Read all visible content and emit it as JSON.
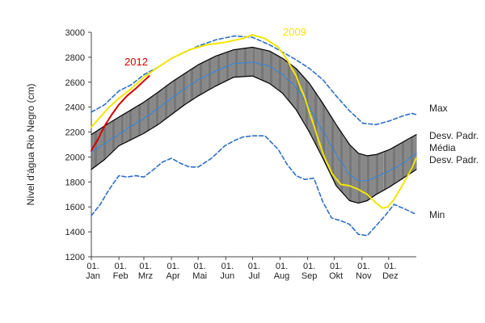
{
  "chart_data": {
    "type": "line",
    "title": "",
    "ylabel": "Nível d'água Rio Negro (cm)",
    "xlabel": "",
    "ylim": [
      1200,
      3000
    ],
    "yticks": [
      1200,
      1400,
      1600,
      1800,
      2000,
      2200,
      2400,
      2600,
      2800,
      3000
    ],
    "xlim": [
      0,
      365
    ],
    "month_ticks": [
      {
        "day": 0,
        "line1": "01.",
        "line2": "Jan"
      },
      {
        "day": 31,
        "line1": "01.",
        "line2": "Feb"
      },
      {
        "day": 59,
        "line1": "01.",
        "line2": "Mrz"
      },
      {
        "day": 90,
        "line1": "01.",
        "line2": "Apr"
      },
      {
        "day": 120,
        "line1": "01.",
        "line2": "Mai"
      },
      {
        "day": 151,
        "line1": "01.",
        "line2": "Jun"
      },
      {
        "day": 181,
        "line1": "01.",
        "line2": "Jul"
      },
      {
        "day": 212,
        "line1": "01.",
        "line2": "Aug"
      },
      {
        "day": 243,
        "line1": "01.",
        "line2": "Sep"
      },
      {
        "day": 273,
        "line1": "01.",
        "line2": "Okt"
      },
      {
        "day": 304,
        "line1": "01.",
        "line2": "Nov"
      },
      {
        "day": 334,
        "line1": "01.",
        "line2": "Dez"
      }
    ],
    "series": [
      {
        "name": "Max",
        "color": "#2f6fc4",
        "style": "dashed",
        "x": [
          0,
          15,
          31,
          45,
          59,
          75,
          90,
          105,
          120,
          140,
          160,
          181,
          200,
          215,
          230,
          245,
          260,
          275,
          290,
          305,
          320,
          335,
          350,
          360,
          365
        ],
        "y": [
          2360,
          2420,
          2530,
          2580,
          2660,
          2720,
          2790,
          2840,
          2890,
          2940,
          2970,
          2960,
          2900,
          2840,
          2780,
          2710,
          2620,
          2490,
          2370,
          2270,
          2260,
          2290,
          2330,
          2350,
          2340
        ]
      },
      {
        "name": "Desv. Padr. (+)",
        "color": "#000000",
        "style": "solid",
        "x": [
          0,
          15,
          31,
          45,
          59,
          75,
          90,
          105,
          120,
          140,
          160,
          181,
          200,
          215,
          230,
          245,
          260,
          275,
          290,
          300,
          310,
          320,
          335,
          350,
          365
        ],
        "y": [
          2180,
          2250,
          2320,
          2380,
          2440,
          2520,
          2600,
          2670,
          2740,
          2810,
          2860,
          2880,
          2850,
          2790,
          2710,
          2590,
          2430,
          2260,
          2100,
          2030,
          2010,
          2020,
          2060,
          2120,
          2180
        ]
      },
      {
        "name": "Média",
        "color": "#3a86d6",
        "style": "solid",
        "x": [
          0,
          15,
          31,
          45,
          59,
          75,
          90,
          105,
          120,
          140,
          160,
          181,
          200,
          215,
          230,
          245,
          260,
          275,
          290,
          300,
          310,
          320,
          335,
          350,
          365
        ],
        "y": [
          2040,
          2110,
          2180,
          2250,
          2310,
          2390,
          2470,
          2550,
          2620,
          2690,
          2750,
          2760,
          2730,
          2660,
          2560,
          2400,
          2210,
          2020,
          1860,
          1810,
          1810,
          1840,
          1890,
          1950,
          2030
        ]
      },
      {
        "name": "Desv. Padr. (-)",
        "color": "#000000",
        "style": "solid",
        "x": [
          0,
          15,
          31,
          45,
          59,
          75,
          90,
          105,
          120,
          140,
          160,
          181,
          200,
          215,
          230,
          245,
          260,
          275,
          290,
          300,
          310,
          320,
          335,
          350,
          365
        ],
        "y": [
          1900,
          1980,
          2090,
          2140,
          2190,
          2260,
          2340,
          2420,
          2490,
          2570,
          2640,
          2650,
          2590,
          2510,
          2380,
          2200,
          1990,
          1770,
          1650,
          1630,
          1650,
          1700,
          1760,
          1830,
          1900
        ]
      },
      {
        "name": "Min",
        "color": "#2f6fc4",
        "style": "dashed",
        "x": [
          0,
          10,
          20,
          31,
          40,
          50,
          59,
          70,
          80,
          90,
          100,
          110,
          120,
          135,
          150,
          160,
          170,
          181,
          195,
          210,
          220,
          230,
          240,
          250,
          260,
          270,
          280,
          290,
          300,
          310,
          320,
          330,
          340,
          350,
          365
        ],
        "y": [
          1530,
          1620,
          1740,
          1850,
          1840,
          1850,
          1840,
          1900,
          1960,
          1990,
          1950,
          1920,
          1920,
          1990,
          2090,
          2130,
          2160,
          2170,
          2170,
          2060,
          1940,
          1850,
          1820,
          1830,
          1640,
          1510,
          1490,
          1460,
          1380,
          1370,
          1450,
          1530,
          1620,
          1590,
          1540
        ]
      },
      {
        "name": "2009",
        "color": "#f2e600",
        "style": "solid",
        "x": [
          0,
          10,
          20,
          31,
          45,
          59,
          75,
          90,
          110,
          130,
          150,
          170,
          181,
          195,
          210,
          220,
          230,
          240,
          250,
          260,
          270,
          280,
          290,
          300,
          310,
          320,
          327,
          333,
          340,
          350,
          360,
          365
        ],
        "y": [
          2240,
          2320,
          2400,
          2470,
          2550,
          2640,
          2720,
          2790,
          2860,
          2900,
          2920,
          2950,
          2980,
          2950,
          2880,
          2780,
          2650,
          2470,
          2250,
          2030,
          1870,
          1780,
          1770,
          1740,
          1700,
          1630,
          1590,
          1600,
          1660,
          1780,
          1910,
          1990
        ]
      },
      {
        "name": "2012",
        "color": "#d40000",
        "style": "solid",
        "x": [
          0,
          8,
          15,
          22,
          31,
          40,
          50,
          59,
          65
        ],
        "y": [
          2050,
          2150,
          2250,
          2330,
          2420,
          2490,
          2550,
          2610,
          2650
        ]
      }
    ],
    "legend_labels": [
      "Max",
      "Desv. Padr.",
      "Média",
      "Desv. Padr.",
      "Min"
    ],
    "annotations": [
      {
        "text": "2012",
        "series": "2012"
      },
      {
        "text": "2009",
        "series": "2009"
      }
    ]
  }
}
